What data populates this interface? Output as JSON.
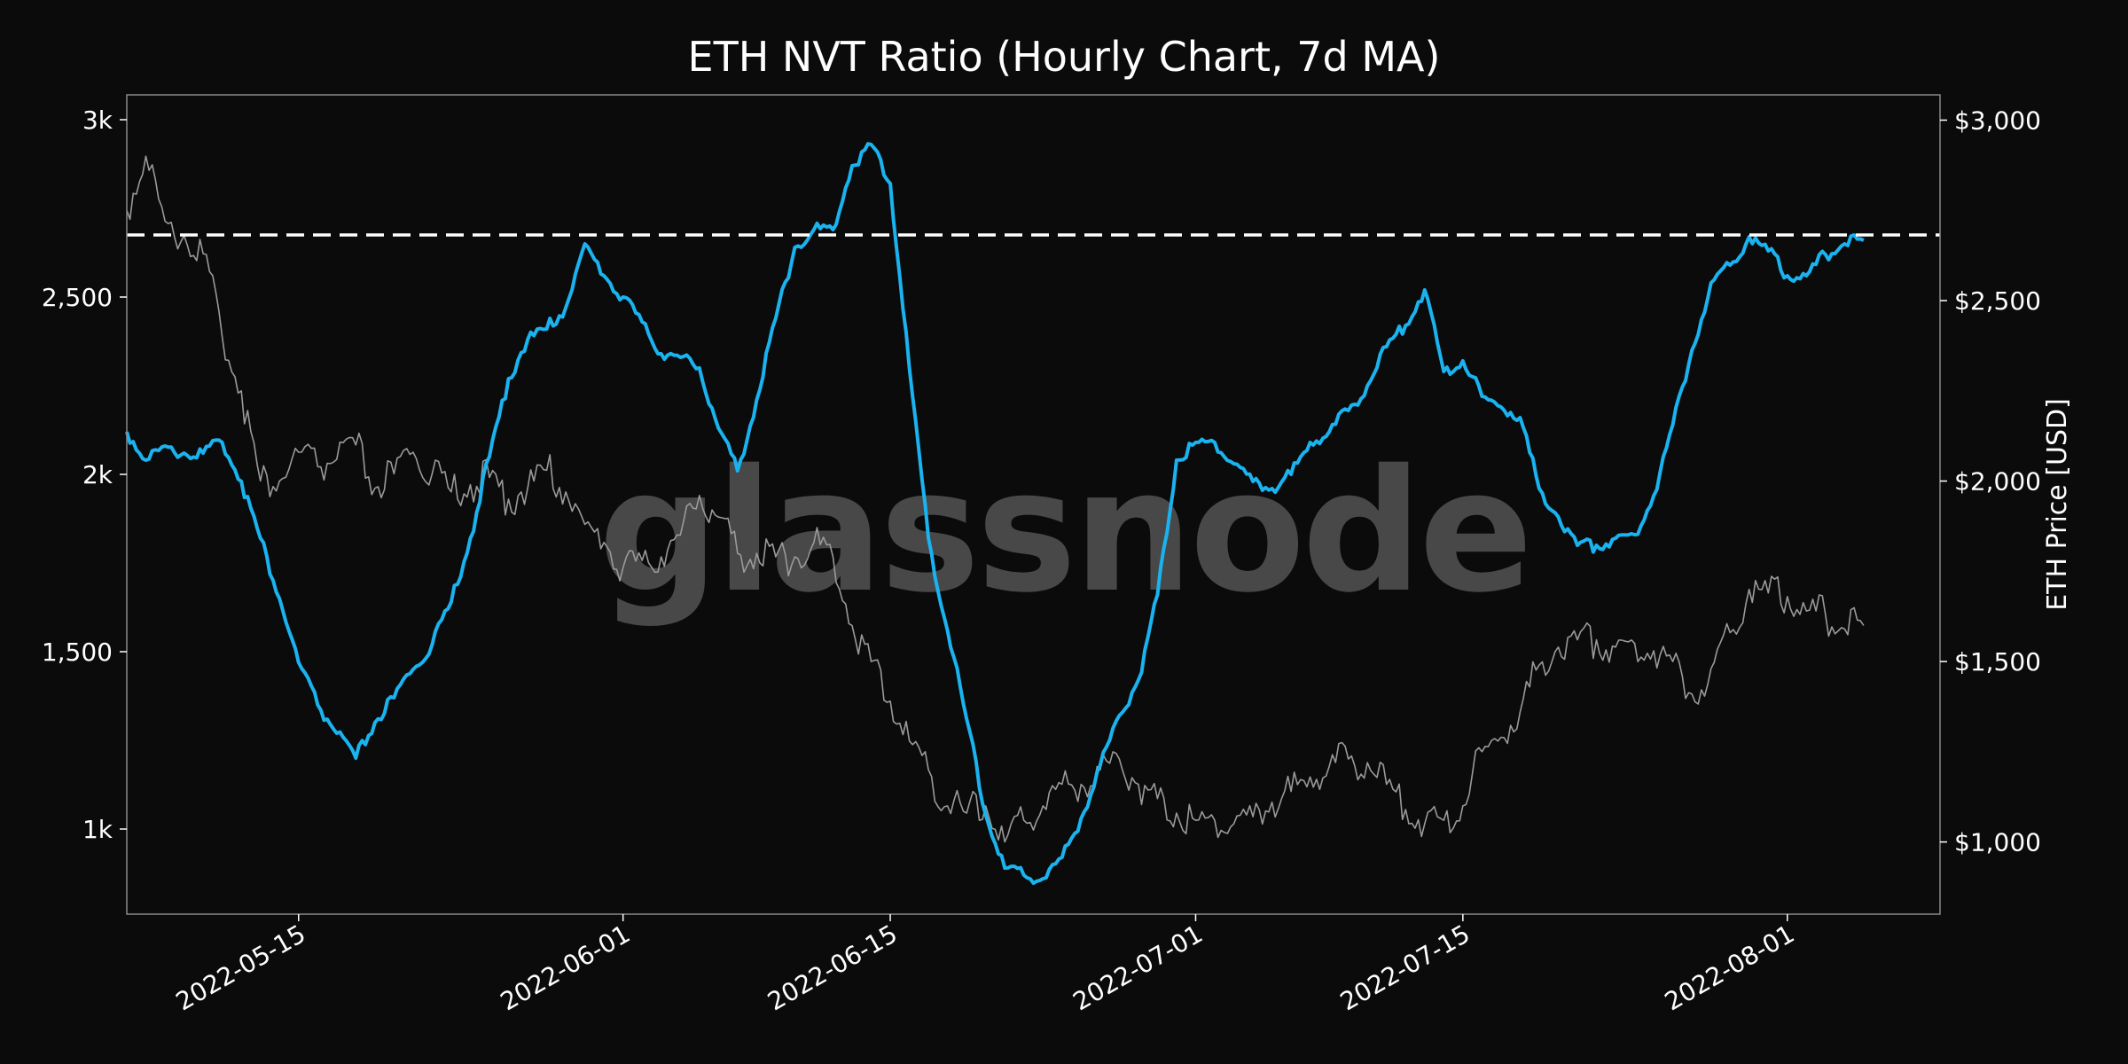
{
  "chart_data": {
    "type": "line",
    "title": "ETH NVT Ratio (Hourly Chart, 7d MA)",
    "xlabel": "",
    "ylabel_left": "",
    "ylabel_right": "ETH Price [USD]",
    "watermark": "glassnode",
    "x_range": [
      "2022-05-06",
      "2022-08-09"
    ],
    "x_ticks": [
      {
        "date": "2022-05-15",
        "label": "2022-05-15"
      },
      {
        "date": "2022-06-01",
        "label": "2022-06-01"
      },
      {
        "date": "2022-06-15",
        "label": "2022-06-15"
      },
      {
        "date": "2022-07-01",
        "label": "2022-07-01"
      },
      {
        "date": "2022-07-15",
        "label": "2022-07-15"
      },
      {
        "date": "2022-08-01",
        "label": "2022-08-01"
      }
    ],
    "y_left": {
      "range": [
        760,
        3070
      ],
      "ticks": [
        {
          "value": 1000,
          "label": "1k"
        },
        {
          "value": 1500,
          "label": "1,500"
        },
        {
          "value": 2000,
          "label": "2k"
        },
        {
          "value": 2500,
          "label": "2,500"
        },
        {
          "value": 3000,
          "label": "3k"
        }
      ]
    },
    "y_right": {
      "range": [
        800,
        3070
      ],
      "ticks": [
        {
          "value": 1000,
          "label": "$1,000"
        },
        {
          "value": 1500,
          "label": "$1,500"
        },
        {
          "value": 2000,
          "label": "$2,000"
        },
        {
          "value": 2500,
          "label": "$2,500"
        },
        {
          "value": 3000,
          "label": "$3,000"
        }
      ]
    },
    "threshold": {
      "value": 2675,
      "axis": "left",
      "style": "dashed",
      "color": "#ffffff"
    },
    "grid": false,
    "series": [
      {
        "name": "",
        "axis": "left",
        "color": "#1ab3f0",
        "points": [
          [
            "2022-05-06",
            2120
          ],
          [
            "2022-05-07",
            2040
          ],
          [
            "2022-05-08",
            2080
          ],
          [
            "2022-05-09",
            2060
          ],
          [
            "2022-05-10",
            2060
          ],
          [
            "2022-05-11",
            2090
          ],
          [
            "2022-05-12",
            1980
          ],
          [
            "2022-05-13",
            1820
          ],
          [
            "2022-05-14",
            1650
          ],
          [
            "2022-05-15",
            1470
          ],
          [
            "2022-05-16",
            1350
          ],
          [
            "2022-05-17",
            1270
          ],
          [
            "2022-05-18",
            1200
          ],
          [
            "2022-05-19",
            1300
          ],
          [
            "2022-05-20",
            1370
          ],
          [
            "2022-05-21",
            1450
          ],
          [
            "2022-05-22",
            1520
          ],
          [
            "2022-05-23",
            1640
          ],
          [
            "2022-05-24",
            1820
          ],
          [
            "2022-05-25",
            2050
          ],
          [
            "2022-05-26",
            2270
          ],
          [
            "2022-05-27",
            2380
          ],
          [
            "2022-05-28",
            2410
          ],
          [
            "2022-05-29",
            2470
          ],
          [
            "2022-05-30",
            2650
          ],
          [
            "2022-05-31",
            2560
          ],
          [
            "2022-06-01",
            2500
          ],
          [
            "2022-06-02",
            2430
          ],
          [
            "2022-06-03",
            2340
          ],
          [
            "2022-06-04",
            2330
          ],
          [
            "2022-06-05",
            2300
          ],
          [
            "2022-06-06",
            2130
          ],
          [
            "2022-06-07",
            2010
          ],
          [
            "2022-06-08",
            2210
          ],
          [
            "2022-06-09",
            2440
          ],
          [
            "2022-06-10",
            2640
          ],
          [
            "2022-06-11",
            2690
          ],
          [
            "2022-06-12",
            2690
          ],
          [
            "2022-06-13",
            2870
          ],
          [
            "2022-06-14",
            2930
          ],
          [
            "2022-06-15",
            2820
          ],
          [
            "2022-06-16",
            2300
          ],
          [
            "2022-06-17",
            1820
          ],
          [
            "2022-06-18",
            1560
          ],
          [
            "2022-06-19",
            1310
          ],
          [
            "2022-06-20",
            1040
          ],
          [
            "2022-06-21",
            890
          ],
          [
            "2022-06-22",
            870
          ],
          [
            "2022-06-23",
            860
          ],
          [
            "2022-06-24",
            920
          ],
          [
            "2022-06-25",
            1030
          ],
          [
            "2022-06-26",
            1180
          ],
          [
            "2022-06-27",
            1320
          ],
          [
            "2022-06-28",
            1420
          ],
          [
            "2022-06-29",
            1660
          ],
          [
            "2022-06-30",
            2040
          ],
          [
            "2022-07-01",
            2090
          ],
          [
            "2022-07-02",
            2090
          ],
          [
            "2022-07-03",
            2030
          ],
          [
            "2022-07-04",
            1980
          ],
          [
            "2022-07-05",
            1960
          ],
          [
            "2022-07-06",
            2000
          ],
          [
            "2022-07-07",
            2090
          ],
          [
            "2022-07-08",
            2120
          ],
          [
            "2022-07-09",
            2180
          ],
          [
            "2022-07-10",
            2250
          ],
          [
            "2022-07-11",
            2360
          ],
          [
            "2022-07-12",
            2420
          ],
          [
            "2022-07-13",
            2520
          ],
          [
            "2022-07-14",
            2290
          ],
          [
            "2022-07-15",
            2320
          ],
          [
            "2022-07-16",
            2220
          ],
          [
            "2022-07-17",
            2190
          ],
          [
            "2022-07-18",
            2160
          ],
          [
            "2022-07-19",
            1960
          ],
          [
            "2022-07-20",
            1880
          ],
          [
            "2022-07-21",
            1800
          ],
          [
            "2022-07-22",
            1800
          ],
          [
            "2022-07-23",
            1820
          ],
          [
            "2022-07-24",
            1830
          ],
          [
            "2022-07-25",
            1940
          ],
          [
            "2022-07-26",
            2140
          ],
          [
            "2022-07-27",
            2350
          ],
          [
            "2022-07-28",
            2540
          ],
          [
            "2022-07-29",
            2590
          ],
          [
            "2022-07-30",
            2670
          ],
          [
            "2022-07-31",
            2630
          ],
          [
            "2022-08-01",
            2560
          ],
          [
            "2022-08-02",
            2560
          ],
          [
            "2022-08-03",
            2620
          ],
          [
            "2022-08-04",
            2650
          ],
          [
            "2022-08-05",
            2660
          ]
        ]
      },
      {
        "name": "ETH Price [USD]",
        "axis": "right",
        "color": "#9a9a9a",
        "points": [
          [
            "2022-05-06",
            2750
          ],
          [
            "2022-05-07",
            2900
          ],
          [
            "2022-05-08",
            2720
          ],
          [
            "2022-05-09",
            2680
          ],
          [
            "2022-05-10",
            2630
          ],
          [
            "2022-05-11",
            2400
          ],
          [
            "2022-05-12",
            2250
          ],
          [
            "2022-05-13",
            2000
          ],
          [
            "2022-05-14",
            2000
          ],
          [
            "2022-05-15",
            2080
          ],
          [
            "2022-05-16",
            2040
          ],
          [
            "2022-05-17",
            2060
          ],
          [
            "2022-05-18",
            2100
          ],
          [
            "2022-05-19",
            1980
          ],
          [
            "2022-05-20",
            2020
          ],
          [
            "2022-05-21",
            2080
          ],
          [
            "2022-05-22",
            2020
          ],
          [
            "2022-05-23",
            1970
          ],
          [
            "2022-05-24",
            1990
          ],
          [
            "2022-05-25",
            2010
          ],
          [
            "2022-05-26",
            1950
          ],
          [
            "2022-05-27",
            1980
          ],
          [
            "2022-05-28",
            2030
          ],
          [
            "2022-05-29",
            1970
          ],
          [
            "2022-05-30",
            1880
          ],
          [
            "2022-05-31",
            1830
          ],
          [
            "2022-06-01",
            1760
          ],
          [
            "2022-06-02",
            1780
          ],
          [
            "2022-06-03",
            1790
          ],
          [
            "2022-06-04",
            1850
          ],
          [
            "2022-06-05",
            1960
          ],
          [
            "2022-06-06",
            1900
          ],
          [
            "2022-06-07",
            1800
          ],
          [
            "2022-06-08",
            1800
          ],
          [
            "2022-06-09",
            1790
          ],
          [
            "2022-06-10",
            1790
          ],
          [
            "2022-06-11",
            1830
          ],
          [
            "2022-06-12",
            1790
          ],
          [
            "2022-06-13",
            1600
          ],
          [
            "2022-06-14",
            1500
          ],
          [
            "2022-06-15",
            1390
          ],
          [
            "2022-06-16",
            1280
          ],
          [
            "2022-06-17",
            1200
          ],
          [
            "2022-06-18",
            1100
          ],
          [
            "2022-06-19",
            1080
          ],
          [
            "2022-06-20",
            1100
          ],
          [
            "2022-06-21",
            1000
          ],
          [
            "2022-06-22",
            1060
          ],
          [
            "2022-06-23",
            1100
          ],
          [
            "2022-06-24",
            1160
          ],
          [
            "2022-06-25",
            1160
          ],
          [
            "2022-06-26",
            1200
          ],
          [
            "2022-06-27",
            1230
          ],
          [
            "2022-06-28",
            1160
          ],
          [
            "2022-06-29",
            1120
          ],
          [
            "2022-06-30",
            1080
          ],
          [
            "2022-07-01",
            1060
          ],
          [
            "2022-07-02",
            1060
          ],
          [
            "2022-07-03",
            1050
          ],
          [
            "2022-07-04",
            1070
          ],
          [
            "2022-07-05",
            1110
          ],
          [
            "2022-07-06",
            1140
          ],
          [
            "2022-07-07",
            1180
          ],
          [
            "2022-07-08",
            1210
          ],
          [
            "2022-07-09",
            1230
          ],
          [
            "2022-07-10",
            1220
          ],
          [
            "2022-07-11",
            1160
          ],
          [
            "2022-07-12",
            1090
          ],
          [
            "2022-07-13",
            1050
          ],
          [
            "2022-07-14",
            1060
          ],
          [
            "2022-07-15",
            1100
          ],
          [
            "2022-07-16",
            1250
          ],
          [
            "2022-07-17",
            1290
          ],
          [
            "2022-07-18",
            1360
          ],
          [
            "2022-07-19",
            1490
          ],
          [
            "2022-07-20",
            1540
          ],
          [
            "2022-07-21",
            1560
          ],
          [
            "2022-07-22",
            1560
          ],
          [
            "2022-07-23",
            1540
          ],
          [
            "2022-07-24",
            1550
          ],
          [
            "2022-07-25",
            1530
          ],
          [
            "2022-07-26",
            1500
          ],
          [
            "2022-07-27",
            1410
          ],
          [
            "2022-07-28",
            1480
          ],
          [
            "2022-07-29",
            1580
          ],
          [
            "2022-07-30",
            1700
          ],
          [
            "2022-07-31",
            1690
          ],
          [
            "2022-08-01",
            1680
          ],
          [
            "2022-08-02",
            1640
          ],
          [
            "2022-08-03",
            1630
          ],
          [
            "2022-08-04",
            1590
          ],
          [
            "2022-08-05",
            1600
          ]
        ]
      }
    ]
  }
}
